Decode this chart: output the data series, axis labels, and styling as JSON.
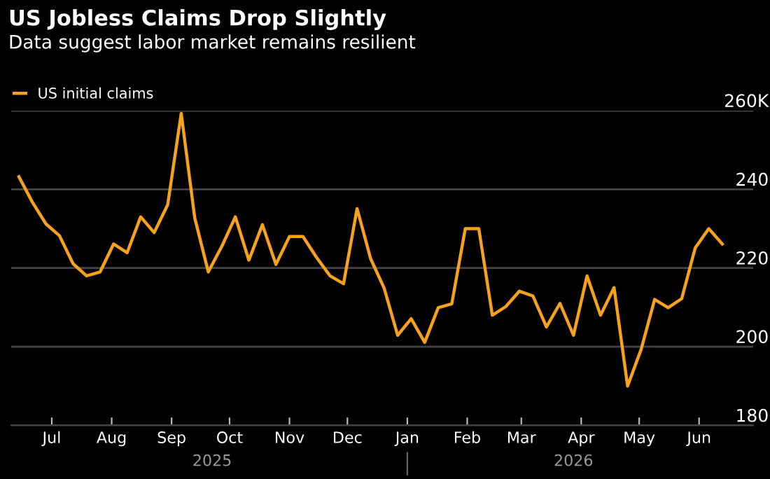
{
  "chart_data": {
    "type": "line",
    "title": "US Jobless Claims Drop Slightly",
    "subtitle": "Data suggest labor market remains resilient",
    "x": [
      "2025-06-14",
      "2025-06-21",
      "2025-06-28",
      "2025-07-05",
      "2025-07-12",
      "2025-07-19",
      "2025-07-26",
      "2025-08-02",
      "2025-08-09",
      "2025-08-16",
      "2025-08-23",
      "2025-08-30",
      "2025-09-06",
      "2025-09-13",
      "2025-09-20",
      "2025-09-27",
      "2025-10-04",
      "2025-10-11",
      "2025-10-18",
      "2025-10-25",
      "2025-11-01",
      "2025-11-08",
      "2025-11-15",
      "2025-11-22",
      "2025-11-29",
      "2025-12-06",
      "2025-12-13",
      "2025-12-20",
      "2025-12-27",
      "2026-01-03",
      "2026-01-10",
      "2026-01-17",
      "2026-01-24",
      "2026-01-31",
      "2026-02-07",
      "2026-02-14",
      "2026-02-21",
      "2026-02-28",
      "2026-03-07",
      "2026-03-14",
      "2026-03-21",
      "2026-03-28",
      "2026-04-04",
      "2026-04-11",
      "2026-04-18",
      "2026-04-25",
      "2026-05-02",
      "2026-05-09",
      "2026-05-16",
      "2026-05-23",
      "2026-05-30",
      "2026-06-06",
      "2026-06-13"
    ],
    "series": [
      {
        "name": "US initial claims",
        "color": "#f7a21b",
        "values": [
          243.2,
          236.7,
          231.2,
          228.2,
          221.1,
          218.0,
          219.0,
          226.1,
          223.9,
          233.0,
          229.0,
          236.1,
          259.3,
          232.7,
          219.0,
          225.5,
          233.0,
          222.0,
          231.0,
          220.9,
          228.0,
          228.0,
          222.7,
          218.0,
          216.0,
          235.1,
          222.4,
          214.9,
          202.9,
          207.1,
          201.1,
          209.9,
          210.9,
          230.0,
          230.0,
          208.0,
          210.2,
          214.1,
          212.9,
          205.0,
          211.0,
          202.9,
          218.0,
          208.0,
          215.0,
          190.0,
          199.3,
          212.0,
          209.9,
          212.2,
          225.1,
          230.0,
          226.1
        ]
      }
    ],
    "xlim": [
      "2025-06-10",
      "2026-06-29"
    ],
    "xticks": [
      {
        "value": "2025-07-01",
        "label": "Jul"
      },
      {
        "value": "2025-08-01",
        "label": "Aug"
      },
      {
        "value": "2025-09-01",
        "label": "Sep"
      },
      {
        "value": "2025-10-01",
        "label": "Oct"
      },
      {
        "value": "2025-11-01",
        "label": "Nov"
      },
      {
        "value": "2025-12-01",
        "label": "Dec"
      },
      {
        "value": "2026-01-01",
        "label": "Jan"
      },
      {
        "value": "2026-02-01",
        "label": "Feb"
      },
      {
        "value": "2026-03-01",
        "label": "Mar"
      },
      {
        "value": "2026-04-01",
        "label": "Apr"
      },
      {
        "value": "2026-05-01",
        "label": "May"
      },
      {
        "value": "2026-06-01",
        "label": "Jun"
      }
    ],
    "x2lim": [
      "2025-06-10",
      "2026-06-29"
    ],
    "x2ticks": [
      {
        "value": "2025-09-22",
        "label": "2025"
      },
      {
        "value": "2026-01-01",
        "label": null
      },
      {
        "value": "2026-03-28",
        "label": "2026"
      }
    ],
    "ylim": [
      180,
      260
    ],
    "yticks": [
      180,
      200,
      220,
      240,
      {
        "value": 260,
        "label": "260K"
      }
    ],
    "grid": "y",
    "legend": "top left",
    "marker": "none",
    "line_style": "solid"
  }
}
